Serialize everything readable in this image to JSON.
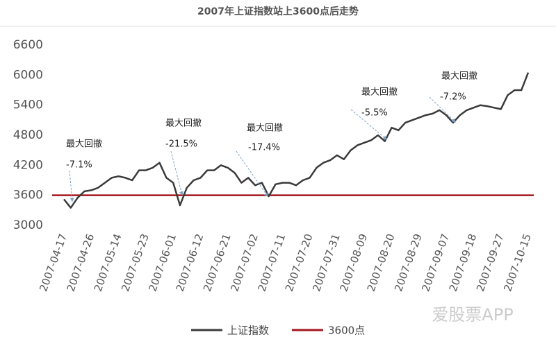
{
  "chart_data": {
    "type": "line",
    "title": "2007年上证指数站上3600点后走势",
    "categories": [
      "2007-04-17",
      null,
      null,
      null,
      "2007-04-26",
      null,
      null,
      null,
      "2007-05-14",
      null,
      null,
      null,
      "2007-05-23",
      null,
      null,
      null,
      "2007-06-01",
      null,
      null,
      null,
      "2007-06-12",
      null,
      null,
      null,
      "2007-06-21",
      null,
      null,
      null,
      "2007-07-02",
      null,
      null,
      null,
      "2007-07-11",
      null,
      null,
      null,
      "2007-07-20",
      null,
      null,
      null,
      "2007-07-31",
      null,
      null,
      null,
      "2007-08-09",
      null,
      null,
      null,
      "2007-08-20",
      null,
      null,
      null,
      "2007-08-29",
      null,
      null,
      null,
      "2007-09-07",
      null,
      null,
      null,
      "2007-09-18",
      null,
      null,
      null,
      "2007-09-27",
      null,
      null,
      null,
      "2007-10-15"
    ],
    "series": [
      {
        "name": "上证指数",
        "color": "#3a3a3a",
        "values": [
          3520,
          3350,
          3550,
          3680,
          3700,
          3750,
          3850,
          3950,
          3980,
          3950,
          3900,
          4100,
          4100,
          4150,
          4250,
          3950,
          3850,
          3400,
          3750,
          3900,
          3950,
          4100,
          4100,
          4200,
          4150,
          4050,
          3850,
          3950,
          3800,
          3850,
          3580,
          3820,
          3850,
          3850,
          3800,
          3900,
          3950,
          4150,
          4250,
          4300,
          4400,
          4320,
          4500,
          4600,
          4650,
          4700,
          4800,
          4680,
          4950,
          4900,
          5050,
          5100,
          5150,
          5200,
          5230,
          5300,
          5200,
          5050,
          5200,
          5300,
          5350,
          5400,
          5380,
          5350,
          5320,
          5600,
          5700,
          5700,
          6050
        ]
      }
    ],
    "reference_lines": [
      {
        "name": "3600点",
        "value": 3600,
        "color": "#a3161d"
      }
    ],
    "annotations": [
      {
        "label": "最大回撤",
        "text": "-7.1%"
      },
      {
        "label": "最大回撤",
        "text": "-21.5%"
      },
      {
        "label": "最大回撤",
        "text": "-17.4%"
      },
      {
        "label": "最大回撤",
        "text": "-5.5%"
      },
      {
        "label": "最大回撤",
        "text": "-7.2%"
      }
    ],
    "ylim": [
      3000,
      6600
    ],
    "yticks": [
      3000,
      3600,
      4200,
      4800,
      5400,
      6000,
      6600
    ],
    "grid": false,
    "watermark": "爱股票APP"
  }
}
